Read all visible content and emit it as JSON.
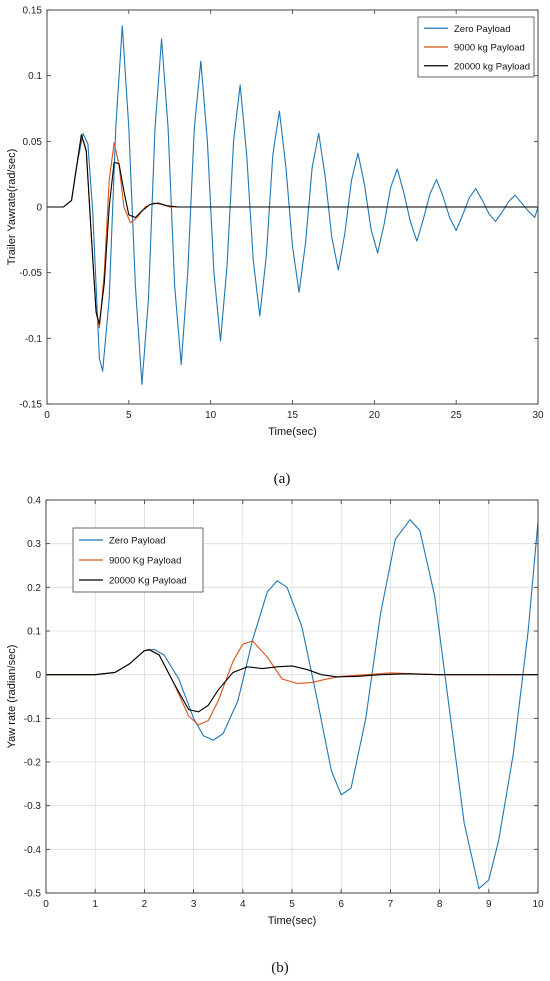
{
  "chart_data": [
    {
      "type": "line",
      "caption": "(a)",
      "xlabel": "Time(sec)",
      "ylabel": "Trailer Yawrate(rad/sec)",
      "xlim": [
        0,
        30
      ],
      "ylim": [
        -0.15,
        0.15
      ],
      "xticks": [
        "0",
        "5",
        "10",
        "15",
        "20",
        "25",
        "30"
      ],
      "yticks": [
        "-0.15",
        "-0.1",
        "-0.05",
        "0",
        "0.05",
        "0.1",
        "0.15"
      ],
      "grid": false,
      "legend_position": "top-right",
      "series": [
        {
          "name": "Zero Payload",
          "color": "#1f77b4",
          "x": [
            0,
            1.0,
            1.5,
            1.8,
            2.2,
            2.5,
            2.8,
            3.2,
            3.4,
            3.8,
            4.2,
            4.6,
            5.0,
            5.4,
            5.8,
            6.2,
            6.6,
            7.0,
            7.4,
            7.8,
            8.2,
            8.6,
            9.0,
            9.4,
            9.8,
            10.2,
            10.6,
            11.0,
            11.4,
            11.8,
            12.2,
            12.6,
            13.0,
            13.4,
            13.8,
            14.2,
            14.6,
            15.0,
            15.4,
            15.8,
            16.2,
            16.6,
            17.0,
            17.4,
            17.8,
            18.2,
            18.6,
            19.0,
            19.4,
            19.8,
            20.2,
            20.6,
            21.0,
            21.4,
            21.8,
            22.2,
            22.6,
            23.0,
            23.4,
            23.8,
            24.2,
            24.6,
            25.0,
            25.4,
            25.8,
            26.2,
            26.6,
            27.0,
            27.4,
            27.8,
            28.2,
            28.6,
            29.0,
            29.4,
            29.8,
            30.0
          ],
          "y": [
            0,
            0,
            0.005,
            0.03,
            0.056,
            0.048,
            -0.005,
            -0.115,
            -0.125,
            -0.07,
            0.06,
            0.138,
            0.06,
            -0.06,
            -0.135,
            -0.07,
            0.06,
            0.128,
            0.06,
            -0.06,
            -0.12,
            -0.05,
            0.06,
            0.111,
            0.05,
            -0.05,
            -0.102,
            -0.045,
            0.05,
            0.093,
            0.04,
            -0.04,
            -0.083,
            -0.037,
            0.04,
            0.073,
            0.03,
            -0.03,
            -0.065,
            -0.027,
            0.03,
            0.056,
            0.023,
            -0.023,
            -0.048,
            -0.02,
            0.02,
            0.041,
            0.017,
            -0.017,
            -0.035,
            -0.013,
            0.015,
            0.029,
            0.011,
            -0.011,
            -0.026,
            -0.009,
            0.01,
            0.021,
            0.008,
            -0.008,
            -0.018,
            -0.006,
            0.007,
            0.014,
            0.005,
            -0.005,
            -0.011,
            -0.004,
            0.004,
            0.009,
            0.003,
            -0.003,
            -0.008,
            0
          ]
        },
        {
          "name": "9000 kg Payload",
          "color": "#d95319",
          "x": [
            0,
            1.0,
            1.5,
            1.8,
            2.1,
            2.4,
            2.7,
            3.0,
            3.2,
            3.5,
            3.8,
            4.1,
            4.4,
            4.7,
            5.1,
            5.5,
            6.0,
            6.5,
            7.0,
            7.5,
            8.0,
            10.0,
            30.0
          ],
          "y": [
            0,
            0,
            0.005,
            0.03,
            0.055,
            0.042,
            -0.02,
            -0.08,
            -0.092,
            -0.05,
            0.02,
            0.049,
            0.032,
            0.0,
            -0.012,
            -0.008,
            0.0,
            0.003,
            0.002,
            0.0,
            0,
            0,
            0
          ]
        },
        {
          "name": "20000 kg Payload",
          "color": "#000000",
          "x": [
            0,
            1.0,
            1.5,
            1.8,
            2.1,
            2.4,
            2.7,
            3.0,
            3.2,
            3.5,
            3.8,
            4.1,
            4.4,
            4.7,
            5.0,
            5.4,
            5.8,
            6.3,
            6.8,
            7.3,
            8.0,
            10.0,
            30.0
          ],
          "y": [
            0,
            0,
            0.005,
            0.03,
            0.055,
            0.043,
            -0.02,
            -0.08,
            -0.089,
            -0.058,
            0.0,
            0.034,
            0.033,
            0.012,
            -0.006,
            -0.008,
            -0.003,
            0.002,
            0.003,
            0.001,
            0,
            0,
            0
          ]
        }
      ]
    },
    {
      "type": "line",
      "caption": "(b)",
      "xlabel": "Time(sec)",
      "ylabel": "Yaw rate (radian/sec)",
      "xlim": [
        0,
        10
      ],
      "ylim": [
        -0.5,
        0.4
      ],
      "xticks": [
        "0",
        "1",
        "2",
        "3",
        "4",
        "5",
        "6",
        "7",
        "8",
        "9",
        "10"
      ],
      "yticks": [
        "-0.5",
        "-0.4",
        "-0.3",
        "-0.2",
        "-0.1",
        "0",
        "0.1",
        "0.2",
        "0.3",
        "0.4"
      ],
      "grid": true,
      "legend_position": "top-left",
      "series": [
        {
          "name": "Zero Payload",
          "color": "#1f77b4",
          "x": [
            0,
            1.0,
            1.4,
            1.7,
            2.0,
            2.2,
            2.4,
            2.7,
            3.0,
            3.2,
            3.4,
            3.6,
            3.9,
            4.2,
            4.5,
            4.7,
            4.9,
            5.2,
            5.5,
            5.8,
            6.0,
            6.2,
            6.5,
            6.8,
            7.1,
            7.4,
            7.6,
            7.9,
            8.2,
            8.5,
            8.8,
            9.0,
            9.2,
            9.5,
            9.8,
            10.0
          ],
          "y": [
            0,
            0,
            0.005,
            0.025,
            0.055,
            0.058,
            0.045,
            -0.01,
            -0.1,
            -0.14,
            -0.15,
            -0.135,
            -0.06,
            0.08,
            0.19,
            0.215,
            0.2,
            0.11,
            -0.05,
            -0.22,
            -0.275,
            -0.26,
            -0.1,
            0.14,
            0.31,
            0.355,
            0.33,
            0.18,
            -0.08,
            -0.34,
            -0.49,
            -0.47,
            -0.38,
            -0.18,
            0.1,
            0.35
          ]
        },
        {
          "name": "9000 Kg Payload",
          "color": "#d95319",
          "x": [
            0,
            1.0,
            1.4,
            1.7,
            2.0,
            2.1,
            2.3,
            2.6,
            2.9,
            3.1,
            3.3,
            3.5,
            3.8,
            4.0,
            4.2,
            4.5,
            4.8,
            5.1,
            5.4,
            5.7,
            6.0,
            6.5,
            7.0,
            7.5,
            8.0,
            9.0,
            10.0
          ],
          "y": [
            0,
            0,
            0.005,
            0.025,
            0.055,
            0.058,
            0.045,
            -0.02,
            -0.095,
            -0.115,
            -0.105,
            -0.06,
            0.03,
            0.07,
            0.077,
            0.04,
            -0.01,
            -0.02,
            -0.018,
            -0.01,
            -0.004,
            0.0,
            0.004,
            0.002,
            0,
            0,
            0
          ]
        },
        {
          "name": "20000 Kg Payload",
          "color": "#000000",
          "x": [
            0,
            1.0,
            1.4,
            1.7,
            2.0,
            2.1,
            2.3,
            2.6,
            2.9,
            3.1,
            3.3,
            3.5,
            3.8,
            4.1,
            4.4,
            4.7,
            5.0,
            5.3,
            5.6,
            5.9,
            6.3,
            6.8,
            7.3,
            8.0,
            9.0,
            10.0
          ],
          "y": [
            0,
            0,
            0.005,
            0.025,
            0.055,
            0.057,
            0.045,
            -0.02,
            -0.08,
            -0.085,
            -0.07,
            -0.035,
            0.005,
            0.018,
            0.014,
            0.018,
            0.02,
            0.012,
            0.0,
            -0.005,
            -0.004,
            0.0,
            0.002,
            0,
            0,
            0
          ]
        }
      ]
    }
  ]
}
